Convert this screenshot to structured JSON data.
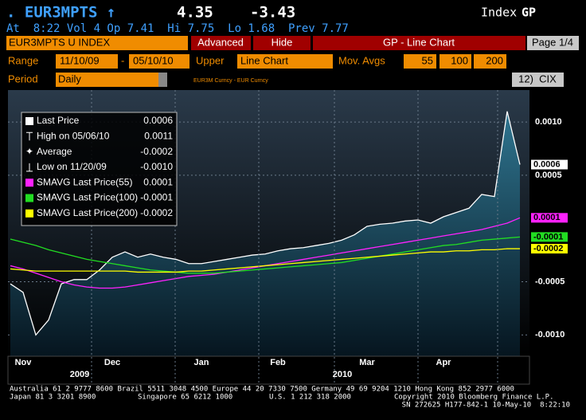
{
  "header": {
    "ticker": ". EUR3MPTS ↑",
    "price": "4.35",
    "change": "-3.43",
    "asset_class": "Index",
    "function": "GP",
    "quote_line": "At  8:22 Vol 4 Op 7.41  Hi 7.75  Lo 1.68  Prev 7.77"
  },
  "toolbar": {
    "security": "EUR3MPTS U INDEX",
    "advanced": "Advanced",
    "hide": "Hide",
    "screen": "GP - Line Chart",
    "page": "Page 1/4"
  },
  "settings": {
    "range_label": "Range",
    "start": "11/10/09",
    "dash": "-",
    "end": "05/10/10",
    "upper_label": "Upper",
    "upper": "Line Chart",
    "mov_avgs_label": "Mov. Avgs",
    "mov_avgs": [
      "55",
      "100",
      "200"
    ],
    "period_label": "Period",
    "period": "Daily",
    "description": "EUR3M Curncy - EUR Curncy",
    "cix": "12)  CIX"
  },
  "chart_data": {
    "type": "line",
    "categories": [
      null,
      "Nov",
      null,
      null,
      null,
      null,
      null,
      null,
      "Dec",
      null,
      null,
      null,
      null,
      null,
      null,
      "Jan",
      null,
      null,
      null,
      null,
      null,
      "Feb",
      null,
      null,
      null,
      null,
      null,
      null,
      "Mar",
      null,
      null,
      null,
      null,
      null,
      "Apr",
      null,
      null,
      null,
      null,
      null,
      null
    ],
    "years": [
      "2009",
      "2010"
    ],
    "series": [
      {
        "name": "Last Price",
        "color": "#ffffff",
        "fill": "#1f5a74",
        "last_label": "0.0006",
        "values": [
          -0.00052,
          -0.0006,
          -0.001,
          -0.00086,
          -0.00052,
          -0.00048,
          -0.00048,
          -0.00039,
          -0.00027,
          -0.00022,
          -0.00027,
          -0.00024,
          -0.00027,
          -0.00029,
          -0.00033,
          -0.00033,
          -0.00031,
          -0.00029,
          -0.00027,
          -0.00025,
          -0.00024,
          -0.00021,
          -0.00019,
          -0.00018,
          -0.00016,
          -0.00014,
          -0.00011,
          -6e-05,
          2e-05,
          4e-05,
          5e-05,
          7e-05,
          8e-05,
          5e-05,
          0.00011,
          0.00015,
          0.00019,
          0.00032,
          0.0003,
          0.0011,
          0.0006
        ]
      },
      {
        "name": "SMAVG Last Price(55)",
        "color": "#ff22ff",
        "last_label": "0.0001",
        "values": [
          -0.00035,
          -0.00038,
          -0.00042,
          -0.00046,
          -0.0005,
          -0.00053,
          -0.00055,
          -0.00056,
          -0.00056,
          -0.00055,
          -0.00053,
          -0.00051,
          -0.00049,
          -0.00047,
          -0.00045,
          -0.00044,
          -0.00043,
          -0.00041,
          -0.00039,
          -0.00037,
          -0.00035,
          -0.00033,
          -0.00031,
          -0.00029,
          -0.00027,
          -0.00025,
          -0.00023,
          -0.00021,
          -0.00019,
          -0.00017,
          -0.00015,
          -0.00013,
          -0.00011,
          -9e-05,
          -7e-05,
          -5e-05,
          -3e-05,
          -1e-05,
          2e-05,
          5e-05,
          0.0001
        ]
      },
      {
        "name": "SMAVG Last Price(100)",
        "color": "#22dd22",
        "last_label": "-0.0001",
        "values": [
          -0.0001,
          -0.00013,
          -0.00016,
          -0.0002,
          -0.00023,
          -0.00026,
          -0.00029,
          -0.00031,
          -0.00033,
          -0.00035,
          -0.00037,
          -0.00039,
          -0.0004,
          -0.00041,
          -0.00042,
          -0.00042,
          -0.00042,
          -0.00041,
          -0.0004,
          -0.00039,
          -0.00038,
          -0.00037,
          -0.00036,
          -0.00035,
          -0.00034,
          -0.00033,
          -0.00032,
          -0.0003,
          -0.00028,
          -0.00026,
          -0.00024,
          -0.00022,
          -0.0002,
          -0.00018,
          -0.00016,
          -0.00015,
          -0.00013,
          -0.00011,
          -0.0001,
          -9e-05,
          -8e-05
        ]
      },
      {
        "name": "SMAVG Last Price(200)",
        "color": "#ffff00",
        "last_label": "-0.0002",
        "values": [
          -0.00038,
          -0.00039,
          -0.0004,
          -0.0004,
          -0.0004,
          -0.0004,
          -0.0004,
          -0.0004,
          -0.0004,
          -0.0004,
          -0.00041,
          -0.00041,
          -0.00041,
          -0.00041,
          -0.0004,
          -0.0004,
          -0.00039,
          -0.00038,
          -0.00037,
          -0.00036,
          -0.00035,
          -0.00034,
          -0.00033,
          -0.00032,
          -0.00031,
          -0.0003,
          -0.00029,
          -0.00028,
          -0.00027,
          -0.00026,
          -0.00025,
          -0.00024,
          -0.00023,
          -0.00022,
          -0.00022,
          -0.00021,
          -0.00021,
          -0.0002,
          -0.0002,
          -0.00019,
          -0.00019
        ]
      }
    ],
    "stats": [
      {
        "name": "High on 05/06/10",
        "label": "0.0011"
      },
      {
        "name": "Average",
        "label": "-0.0002"
      },
      {
        "name": "Low on 11/20/09",
        "label": "-0.0010"
      }
    ],
    "ylim": [
      -0.0012,
      0.0013
    ],
    "yticks": [
      {
        "value": -0.001,
        "label": "-0.0010"
      },
      -0.0005,
      0.0005,
      {
        "value": 0.001,
        "label": "0.0010"
      }
    ],
    "grid": true
  },
  "footer": {
    "line1": "Australia 61 2 9777 8600 Brazil 5511 3048 4500 Europe 44 20 7330 7500 Germany 49 69 9204 1210 Hong Kong 852 2977 6000",
    "line2": [
      "Japan 81 3 3201 8900",
      "Singapore 65 6212 1000",
      "U.S. 1 212 318 2000",
      "Copyright 2010 Bloomberg Finance L.P."
    ],
    "line3": "SN 272625 H177-842-1 10-May-10  8:22:10"
  }
}
